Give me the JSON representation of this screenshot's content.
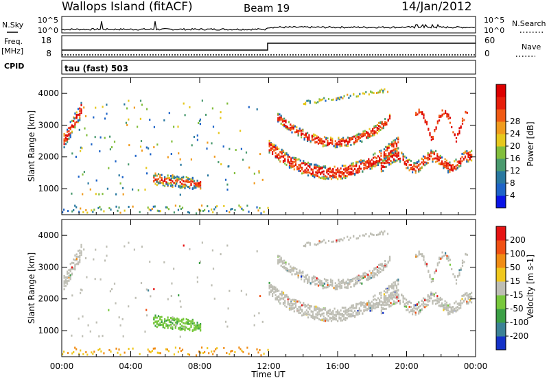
{
  "header": {
    "station": "Wallops Island (fitACF)",
    "beam": "Beam 19",
    "date": "14/Jan/2012"
  },
  "noise_panel": {
    "left_label": "N.Sky",
    "left_ticks": [
      "10^5",
      "10^0"
    ],
    "right_ticks": [
      "10^5",
      "10^0"
    ],
    "right_label": "N.Search"
  },
  "freq_panel": {
    "left_label_1": "Freq.",
    "left_label_2": "[MHz]",
    "left_ticks": [
      "18",
      "8"
    ],
    "right_ticks": [
      "60",
      "0"
    ],
    "right_label": "Nave"
  },
  "cpid_panel": {
    "label": "CPID",
    "program": "tau (fast) 503"
  },
  "chart_data": [
    {
      "type": "heatmap",
      "title": "",
      "ylabel": "Slant Range [km]",
      "yticks": [
        "1000",
        "2000",
        "3000",
        "4000"
      ],
      "ylim": [
        180,
        4500
      ],
      "colorbar_label": "Power [dB]",
      "colorbar_ticks": [
        "4",
        "8",
        "12",
        "16",
        "20",
        "24",
        "28"
      ],
      "colors": [
        "#0a14e6",
        "#1e64c8",
        "#2878a0",
        "#4a9a6e",
        "#82be3c",
        "#e6c81e",
        "#f09b1e",
        "#f05a14",
        "#e61e0a",
        "#dc0000"
      ]
    },
    {
      "type": "heatmap",
      "title": "",
      "ylabel": "Slant Range [km]",
      "yticks": [
        "1000",
        "2000",
        "3000",
        "4000"
      ],
      "ylim": [
        180,
        4500
      ],
      "colorbar_label": "Velocity [m s-1]",
      "colorbar_ticks": [
        "200",
        "100",
        "50",
        "15",
        "-15",
        "-50",
        "-100",
        "-200"
      ],
      "colors": [
        "#1432c8",
        "#3c8296",
        "#3ca046",
        "#78c83c",
        "#bebeb4",
        "#f0c81e",
        "#f08c14",
        "#f05014",
        "#e61414"
      ]
    }
  ],
  "x_axis": {
    "label": "Time UT",
    "ticks": [
      "00:00",
      "04:00",
      "08:00",
      "12:00",
      "16:00",
      "20:00",
      "00:00"
    ]
  }
}
